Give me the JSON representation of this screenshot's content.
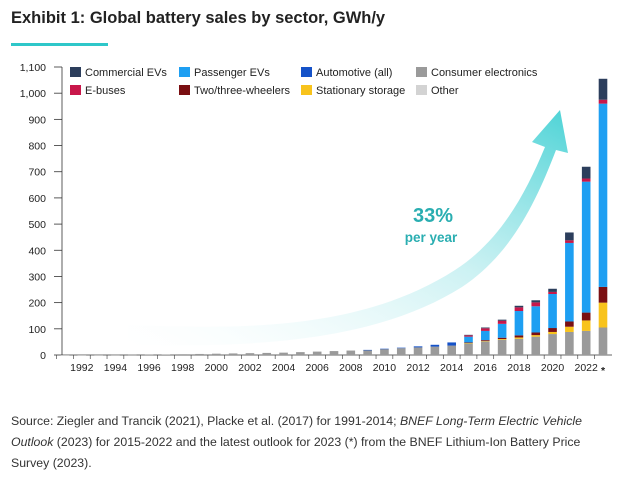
{
  "title": "Exhibit 1: Global battery sales by sector, GWh/y",
  "annotation": {
    "value": "33%",
    "label": "per year"
  },
  "source": {
    "part1": "Source: Ziegler and Trancik (2021), Placke et al. (2017) for 1991-2014; ",
    "part2_italic": "BNEF Long-Term Electric Vehicle Outlook",
    "part3": " (2023) for 2015-2022 and the latest outlook for 2023 (*) from the BNEF Lithium-Ion Battery Price Survey (2023)."
  },
  "chart_data": {
    "type": "bar",
    "stacked": true,
    "title": "Global battery sales by sector, GWh/y",
    "xlabel": "",
    "ylabel": "GWh/y",
    "ylim": [
      0,
      1100
    ],
    "yticks": [
      0,
      100,
      200,
      300,
      400,
      500,
      600,
      700,
      800,
      900,
      1000,
      1100
    ],
    "ytick_labels": [
      "0",
      "100",
      "200",
      "300",
      "400",
      "500",
      "600",
      "700",
      "800",
      "900",
      "1,000",
      "1,100"
    ],
    "categories": [
      "1991",
      "1992",
      "1993",
      "1994",
      "1995",
      "1996",
      "1997",
      "1998",
      "1999",
      "2000",
      "2001",
      "2002",
      "2003",
      "2004",
      "2005",
      "2006",
      "2007",
      "2008",
      "2009",
      "2010",
      "2011",
      "2012",
      "2013",
      "2014",
      "2015",
      "2016",
      "2017",
      "2018",
      "2019",
      "2020",
      "2021",
      "2022",
      "2023*"
    ],
    "xtick_labels": [
      "1992",
      "1994",
      "1996",
      "1998",
      "2000",
      "2002",
      "2004",
      "2006",
      "2008",
      "2010",
      "2012",
      "2014",
      "2016",
      "2018",
      "2020",
      "2022",
      "*"
    ],
    "legend": [
      {
        "name": "Commercial EVs",
        "color": "#2c3e5c"
      },
      {
        "name": "Passenger EVs",
        "color": "#1e9ff2"
      },
      {
        "name": "Automotive (all)",
        "color": "#1552c8"
      },
      {
        "name": "Consumer electronics",
        "color": "#9a9a9a"
      },
      {
        "name": "E-buses",
        "color": "#c8174a"
      },
      {
        "name": "Two/three-wheelers",
        "color": "#7a0f12"
      },
      {
        "name": "Stationary storage",
        "color": "#f8c31c"
      },
      {
        "name": "Other",
        "color": "#d3d3d3"
      }
    ],
    "series": [
      {
        "name": "Consumer electronics",
        "color": "#9a9a9a",
        "values": [
          0.1,
          0.2,
          0.4,
          0.6,
          1,
          1.5,
          2,
          3,
          4,
          5,
          6,
          7,
          8,
          9,
          11,
          13,
          15,
          17,
          19,
          23,
          26,
          29,
          32,
          36,
          45,
          52,
          58,
          62,
          70,
          80,
          88,
          92,
          105
        ]
      },
      {
        "name": "Other",
        "color": "#d3d3d3",
        "values": [
          0,
          0,
          0,
          0,
          0,
          0,
          0,
          0,
          0,
          0,
          0,
          0,
          0,
          0,
          0,
          0,
          0,
          0,
          0,
          0,
          0,
          0,
          0,
          0,
          0,
          0,
          0,
          0,
          0,
          0,
          0,
          0,
          0
        ]
      },
      {
        "name": "Stationary storage",
        "color": "#f8c31c",
        "values": [
          0,
          0,
          0,
          0,
          0,
          0,
          0,
          0,
          0,
          0,
          0,
          0,
          0,
          0,
          0,
          0,
          0,
          0,
          0,
          0,
          0,
          0,
          0,
          0,
          1,
          2,
          3,
          5,
          6,
          8,
          20,
          40,
          95
        ]
      },
      {
        "name": "Two/three-wheelers",
        "color": "#7a0f12",
        "values": [
          0,
          0,
          0,
          0,
          0,
          0,
          0,
          0,
          0,
          0,
          0,
          0,
          0,
          0,
          0,
          0,
          0,
          0,
          0,
          0,
          0,
          0,
          0,
          0,
          2,
          3,
          5,
          8,
          10,
          15,
          20,
          30,
          60
        ]
      },
      {
        "name": "Automotive (all)",
        "color": "#1552c8",
        "values": [
          0,
          0,
          0,
          0,
          0,
          0,
          0,
          0,
          0,
          0,
          0,
          0,
          0,
          0,
          0,
          0,
          0,
          0,
          0.5,
          1,
          2,
          4,
          7,
          12,
          0,
          0,
          0,
          0,
          0,
          0,
          0,
          0,
          0
        ]
      },
      {
        "name": "Passenger EVs",
        "color": "#1e9ff2",
        "values": [
          0,
          0,
          0,
          0,
          0,
          0,
          0,
          0,
          0,
          0,
          0,
          0,
          0,
          0,
          0,
          0,
          0,
          0,
          0,
          0,
          0,
          0,
          0,
          0,
          22,
          35,
          53,
          93,
          100,
          130,
          300,
          500,
          700
        ]
      },
      {
        "name": "E-buses",
        "color": "#c8174a",
        "values": [
          0,
          0,
          0,
          0,
          0,
          0,
          0,
          0,
          0,
          0,
          0,
          0,
          0,
          0,
          0,
          0,
          0,
          0,
          0,
          0,
          0,
          0,
          0,
          0,
          5,
          10,
          12,
          14,
          15,
          8,
          10,
          12,
          15
        ]
      },
      {
        "name": "Commercial EVs",
        "color": "#2c3e5c",
        "values": [
          0,
          0,
          0,
          0,
          0,
          0,
          0,
          0,
          0,
          0,
          0,
          0,
          0,
          0,
          0,
          0,
          0,
          0,
          0,
          0,
          0,
          0,
          0,
          0,
          2,
          3,
          4,
          6,
          8,
          12,
          30,
          45,
          80
        ]
      }
    ]
  }
}
